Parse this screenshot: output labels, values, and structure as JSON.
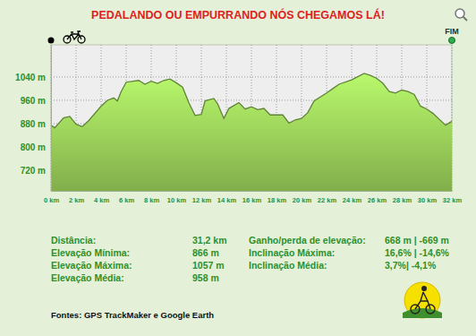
{
  "chart_data": {
    "type": "area",
    "title": "PEDALANDO OU EMPURRANDO NÓS CHEGAMOS LÁ!",
    "color": "#9bd05a",
    "grid": true,
    "x": [
      0,
      0.3,
      1,
      1.5,
      2,
      2.5,
      3,
      4,
      4.5,
      5,
      5.3,
      5.6,
      6,
      7,
      7.5,
      8,
      8.5,
      9,
      9.5,
      10,
      10.5,
      11,
      11.5,
      12,
      12.3,
      13,
      13.3,
      13.8,
      14.2,
      15,
      15.5,
      16,
      16.5,
      17,
      17.5,
      18.5,
      19,
      19.5,
      20,
      20.5,
      21,
      22,
      22.5,
      23,
      24,
      25,
      25.5,
      26,
      26.5,
      27,
      27.5,
      28,
      28.5,
      29,
      29.5,
      30,
      30.5,
      31,
      31.5,
      32
    ],
    "values": [
      875,
      866,
      900,
      905,
      878,
      870,
      890,
      940,
      960,
      968,
      958,
      990,
      1022,
      1028,
      1015,
      1025,
      1018,
      1028,
      1033,
      1020,
      1005,
      952,
      908,
      912,
      958,
      966,
      948,
      898,
      932,
      952,
      930,
      938,
      928,
      932,
      910,
      910,
      882,
      893,
      898,
      918,
      958,
      985,
      1000,
      1015,
      1030,
      1052,
      1045,
      1035,
      1018,
      990,
      985,
      995,
      990,
      980,
      940,
      930,
      915,
      895,
      875,
      888
    ],
    "xlim": [
      0,
      32
    ],
    "xticks": [
      {
        "value": 0,
        "label": "0 km"
      },
      {
        "value": 2,
        "label": "2 km"
      },
      {
        "value": 4,
        "label": "4 km"
      },
      {
        "value": 6,
        "label": "6 km"
      },
      {
        "value": 8,
        "label": "8 km"
      },
      {
        "value": 10,
        "label": "10 km"
      },
      {
        "value": 12,
        "label": "12 km"
      },
      {
        "value": 14,
        "label": "14 km"
      },
      {
        "value": 16,
        "label": "16 km"
      },
      {
        "value": 18,
        "label": "18 km"
      },
      {
        "value": 20,
        "label": "20 km"
      },
      {
        "value": 22,
        "label": "22 km"
      },
      {
        "value": 24,
        "label": "24 km"
      },
      {
        "value": 26,
        "label": "26 km"
      },
      {
        "value": 28,
        "label": "28 km"
      },
      {
        "value": 30,
        "label": "30 km"
      },
      {
        "value": 32,
        "label": "32 km"
      }
    ],
    "ylim": [
      650,
      1150
    ],
    "yticks": [
      {
        "value": 720,
        "label": "720 m"
      },
      {
        "value": 800,
        "label": "800 m"
      },
      {
        "value": 880,
        "label": "880 m"
      },
      {
        "value": 960,
        "label": "960 m"
      },
      {
        "value": 1040,
        "label": "1040 m"
      }
    ],
    "annotations": {
      "end_label": "FIM",
      "left": [
        {
          "label": "Distância:",
          "value": "31,2 km"
        },
        {
          "label": "Elevação Mínima:",
          "value": "866 m"
        },
        {
          "label": "Elevação Máxima:",
          "value": "1057 m"
        },
        {
          "label": "Elevação Média:",
          "value": "958 m"
        }
      ],
      "right": [
        {
          "label": "Ganho/perda de elevação:",
          "value": "668 m | -669 m"
        },
        {
          "label": "Inclinação Máxima:",
          "value": "16,6% | -14,6%"
        },
        {
          "label": "Inclinação Média:",
          "value": "3,7%| -4,1%"
        }
      ],
      "source": "Fontes: GPS TrackMaker e  Google Earth"
    }
  }
}
